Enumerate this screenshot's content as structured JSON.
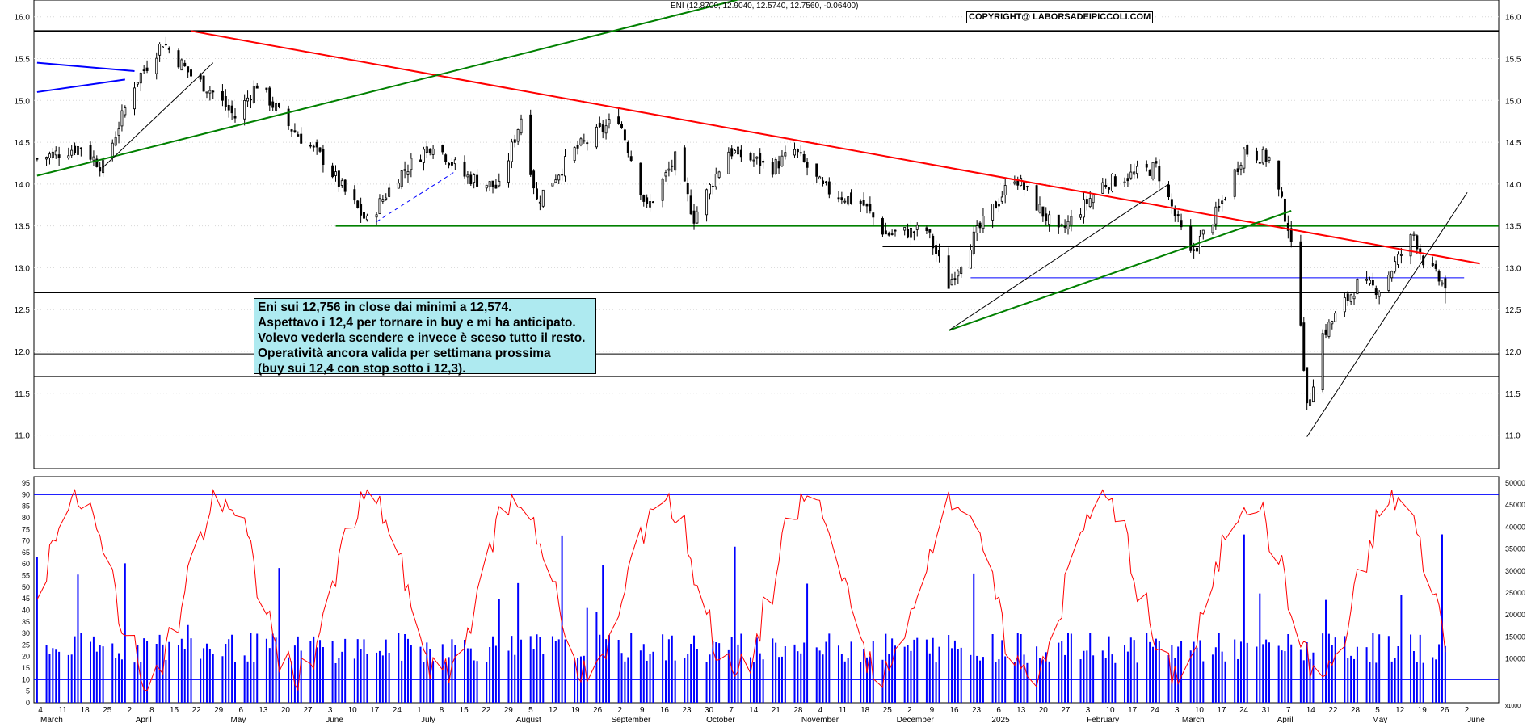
{
  "header": {
    "quote": "ENI (12.8700, 12.9040, 12.5740, 12.7560, -0.06400)",
    "copyright": "COPYRIGHT@ LABORSADEIPICCOLI.COM"
  },
  "annotation": {
    "lines": [
      "Eni sui 12,756 in close dai minimi a 12,574.",
      "Aspettavo i 12,4 per tornare in buy e mi ha anticipato.",
      "Volevo vederla scendere e invece è sceso tutto il resto.",
      "Operatività ancora valida per settimana prossima",
      "(buy sui 12,4 con stop sotto i 12,3)."
    ]
  },
  "colors": {
    "up": "#000000",
    "down": "#000000",
    "trend_red": "#ff0000",
    "trend_green": "#008000",
    "trend_blue": "#0000ff",
    "volume": "#0000ff",
    "oscillator": "#ff0000",
    "annotation_bg": "#aeeaf0"
  },
  "chart_data": [
    {
      "type": "candlestick",
      "title": "ENI",
      "ylim": [
        10.6,
        16.2
      ],
      "yticks": [
        "11.0",
        "11.5",
        "12.0",
        "12.5",
        "13.0",
        "13.5",
        "14.0",
        "14.5",
        "15.0",
        "15.5",
        "16.0"
      ],
      "horizontal_levels": [
        15.83,
        13.5,
        13.25,
        12.88,
        12.7,
        11.97,
        11.7
      ],
      "anchors": [
        {
          "date": "2024-03-01",
          "close": 14.3
        },
        {
          "date": "2024-03-15",
          "close": 14.45
        },
        {
          "date": "2024-03-22",
          "close": 14.2
        },
        {
          "date": "2024-04-01",
          "close": 15.2
        },
        {
          "date": "2024-04-10",
          "close": 15.7
        },
        {
          "date": "2024-04-19",
          "close": 15.3
        },
        {
          "date": "2024-04-26",
          "close": 15.1
        },
        {
          "date": "2024-05-03",
          "close": 14.8
        },
        {
          "date": "2024-05-10",
          "close": 15.2
        },
        {
          "date": "2024-05-20",
          "close": 14.7
        },
        {
          "date": "2024-05-31",
          "close": 14.3
        },
        {
          "date": "2024-06-07",
          "close": 13.9
        },
        {
          "date": "2024-06-14",
          "close": 13.55
        },
        {
          "date": "2024-06-24",
          "close": 14.1
        },
        {
          "date": "2024-07-05",
          "close": 14.5
        },
        {
          "date": "2024-07-15",
          "close": 14.1
        },
        {
          "date": "2024-07-26",
          "close": 13.95
        },
        {
          "date": "2024-08-02",
          "close": 14.8
        },
        {
          "date": "2024-08-07",
          "close": 13.8
        },
        {
          "date": "2024-08-19",
          "close": 14.4
        },
        {
          "date": "2024-09-02",
          "close": 14.8
        },
        {
          "date": "2024-09-11",
          "close": 13.7
        },
        {
          "date": "2024-09-20",
          "close": 14.3
        },
        {
          "date": "2024-09-26",
          "close": 13.6
        },
        {
          "date": "2024-10-07",
          "close": 14.4
        },
        {
          "date": "2024-10-21",
          "close": 14.2
        },
        {
          "date": "2024-10-28",
          "close": 14.4
        },
        {
          "date": "2024-11-06",
          "close": 13.95
        },
        {
          "date": "2024-11-19",
          "close": 13.75
        },
        {
          "date": "2024-11-26",
          "close": 13.4
        },
        {
          "date": "2024-12-09",
          "close": 13.45
        },
        {
          "date": "2024-12-16",
          "close": 12.8
        },
        {
          "date": "2024-12-23",
          "close": 13.3
        },
        {
          "date": "2025-01-06",
          "close": 14.1
        },
        {
          "date": "2025-01-20",
          "close": 13.4
        },
        {
          "date": "2025-02-03",
          "close": 14.0
        },
        {
          "date": "2025-02-20",
          "close": 14.2
        },
        {
          "date": "2025-03-03",
          "close": 13.15
        },
        {
          "date": "2025-03-12",
          "close": 13.7
        },
        {
          "date": "2025-03-20",
          "close": 14.4
        },
        {
          "date": "2025-03-28",
          "close": 14.3
        },
        {
          "date": "2025-04-03",
          "close": 13.5
        },
        {
          "date": "2025-04-07",
          "close": 12.4
        },
        {
          "date": "2025-04-09",
          "close": 11.3
        },
        {
          "date": "2025-04-14",
          "close": 12.2
        },
        {
          "date": "2025-04-25",
          "close": 12.8
        },
        {
          "date": "2025-05-02",
          "close": 12.75
        },
        {
          "date": "2025-05-13",
          "close": 13.4
        },
        {
          "date": "2025-05-16",
          "close": 13.1
        },
        {
          "date": "2025-05-23",
          "close": 12.756
        }
      ],
      "last_bar": {
        "date": "2025-05-23",
        "open": 12.87,
        "high": 12.904,
        "low": 12.574,
        "close": 12.756,
        "change": -0.064
      },
      "trendlines": [
        {
          "color": "red",
          "from": {
            "date": "2024-04-19",
            "price": 15.83
          },
          "to": {
            "date": "2025-06-03",
            "price": 13.05
          }
        },
        {
          "color": "green",
          "from": {
            "date": "2024-03-01",
            "price": 14.1
          },
          "to": {
            "date": "2024-11-05",
            "price": 16.45
          }
        },
        {
          "color": "green",
          "from": {
            "date": "2024-12-16",
            "price": 12.25
          },
          "to": {
            "date": "2025-04-04",
            "price": 13.68
          }
        },
        {
          "color": "blue",
          "from": {
            "date": "2024-03-01",
            "price": 15.45
          },
          "to": {
            "date": "2024-04-01",
            "price": 15.35
          }
        },
        {
          "color": "blue",
          "from": {
            "date": "2024-03-01",
            "price": 15.1
          },
          "to": {
            "date": "2024-03-29",
            "price": 15.25
          }
        }
      ],
      "x_axis": {
        "day_labels": [
          "4",
          "11",
          "18",
          "25",
          "2",
          "8",
          "15",
          "22",
          "29",
          "6",
          "13",
          "20",
          "27",
          "3",
          "10",
          "17",
          "24",
          "1",
          "8",
          "15",
          "22",
          "29",
          "5",
          "12",
          "19",
          "26",
          "2",
          "9",
          "16",
          "23",
          "30",
          "7",
          "14",
          "21",
          "28",
          "4",
          "11",
          "18",
          "25",
          "2",
          "9",
          "16",
          "23",
          "6",
          "13",
          "20",
          "27",
          "3",
          "10",
          "17",
          "24",
          "3",
          "10",
          "17",
          "24",
          "31",
          "7",
          "14",
          "22",
          "28",
          "5",
          "12",
          "19",
          "26",
          "2"
        ],
        "month_labels": [
          "March",
          "April",
          "May",
          "June",
          "July",
          "August",
          "September",
          "October",
          "November",
          "December",
          "2025",
          "February",
          "March",
          "April",
          "May",
          "June"
        ]
      }
    },
    {
      "type": "line",
      "name": "oscillator",
      "ylim": [
        0,
        95
      ],
      "yticks": [
        "0",
        "5",
        "10",
        "15",
        "20",
        "25",
        "30",
        "35",
        "40",
        "45",
        "50",
        "55",
        "60",
        "65",
        "70",
        "75",
        "80",
        "85",
        "90",
        "95"
      ],
      "levels": [
        90,
        10
      ]
    },
    {
      "type": "bar",
      "name": "volume",
      "ylim": [
        0,
        50000
      ],
      "yticks": [
        "10000",
        "15000",
        "20000",
        "25000",
        "30000",
        "35000",
        "40000",
        "45000",
        "50000"
      ],
      "unit": "x1000"
    }
  ]
}
